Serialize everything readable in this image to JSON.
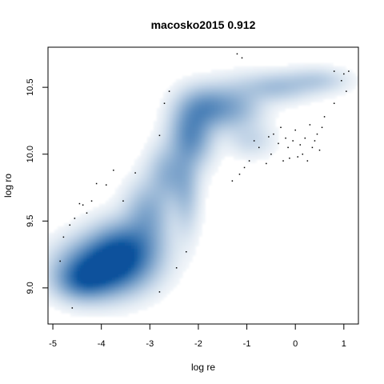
{
  "chart_data": {
    "type": "scatter",
    "style": "smoothed-density-scatter",
    "title": "macosko2015 0.912",
    "xlabel": "log re",
    "ylabel": "log ro",
    "xlim": [
      -5.1,
      1.3
    ],
    "ylim": [
      8.73,
      10.8
    ],
    "xticks": [
      -5,
      -4,
      -3,
      -2,
      -1,
      0,
      1
    ],
    "yticks": [
      9.0,
      9.5,
      10.0,
      10.5
    ],
    "xtick_labels": [
      "-5",
      "-4",
      "-3",
      "-2",
      "-1",
      "0",
      "1"
    ],
    "ytick_labels": [
      "9.0",
      "9.5",
      "10.0",
      "10.5"
    ],
    "grid": false,
    "density_color": "#08519c",
    "density_regions": [
      {
        "x": -3.95,
        "y": 9.15,
        "sx": 0.55,
        "sy": 0.13,
        "w": 1.0
      },
      {
        "x": -3.5,
        "y": 9.3,
        "sx": 0.45,
        "sy": 0.13,
        "w": 0.65
      },
      {
        "x": -4.4,
        "y": 9.05,
        "sx": 0.35,
        "sy": 0.09,
        "w": 0.45
      },
      {
        "x": -3.05,
        "y": 9.55,
        "sx": 0.3,
        "sy": 0.15,
        "w": 0.35
      },
      {
        "x": -2.6,
        "y": 9.85,
        "sx": 0.28,
        "sy": 0.14,
        "w": 0.33
      },
      {
        "x": -2.15,
        "y": 10.15,
        "sx": 0.28,
        "sy": 0.15,
        "w": 0.55
      },
      {
        "x": -1.8,
        "y": 10.35,
        "sx": 0.35,
        "sy": 0.1,
        "w": 0.45
      },
      {
        "x": -2.25,
        "y": 9.7,
        "sx": 0.18,
        "sy": 0.2,
        "w": 0.22
      },
      {
        "x": -1.2,
        "y": 10.35,
        "sx": 0.35,
        "sy": 0.12,
        "w": 0.28
      },
      {
        "x": -0.4,
        "y": 10.5,
        "sx": 0.45,
        "sy": 0.07,
        "w": 0.25
      },
      {
        "x": 0.45,
        "y": 10.55,
        "sx": 0.4,
        "sy": 0.06,
        "w": 0.18
      },
      {
        "x": -0.9,
        "y": 10.1,
        "sx": 0.3,
        "sy": 0.08,
        "w": 0.12
      }
    ],
    "outlier_points": [
      {
        "x": -4.85,
        "y": 9.2
      },
      {
        "x": -4.78,
        "y": 9.38
      },
      {
        "x": -4.65,
        "y": 9.47
      },
      {
        "x": -4.55,
        "y": 9.52
      },
      {
        "x": -4.45,
        "y": 9.63
      },
      {
        "x": -4.38,
        "y": 9.62
      },
      {
        "x": -4.3,
        "y": 9.56
      },
      {
        "x": -4.2,
        "y": 9.65
      },
      {
        "x": -4.1,
        "y": 9.78
      },
      {
        "x": -3.9,
        "y": 9.77
      },
      {
        "x": -3.75,
        "y": 9.88
      },
      {
        "x": -3.55,
        "y": 9.65
      },
      {
        "x": -3.3,
        "y": 9.86
      },
      {
        "x": -2.8,
        "y": 10.14
      },
      {
        "x": -2.7,
        "y": 10.38
      },
      {
        "x": -2.6,
        "y": 10.47
      },
      {
        "x": -2.45,
        "y": 9.15
      },
      {
        "x": -2.25,
        "y": 9.27
      },
      {
        "x": -2.8,
        "y": 8.97
      },
      {
        "x": -4.6,
        "y": 8.85
      },
      {
        "x": -1.2,
        "y": 10.75
      },
      {
        "x": -1.1,
        "y": 10.72
      },
      {
        "x": -1.3,
        "y": 9.8
      },
      {
        "x": -1.15,
        "y": 9.85
      },
      {
        "x": -1.05,
        "y": 9.9
      },
      {
        "x": -0.95,
        "y": 9.95
      },
      {
        "x": -0.85,
        "y": 10.1
      },
      {
        "x": -0.75,
        "y": 10.05
      },
      {
        "x": -0.6,
        "y": 9.93
      },
      {
        "x": -0.5,
        "y": 10.0
      },
      {
        "x": -0.45,
        "y": 10.15
      },
      {
        "x": -0.35,
        "y": 10.08
      },
      {
        "x": -0.3,
        "y": 10.2
      },
      {
        "x": -0.25,
        "y": 9.95
      },
      {
        "x": -0.2,
        "y": 10.12
      },
      {
        "x": -0.15,
        "y": 10.05
      },
      {
        "x": -0.12,
        "y": 9.97
      },
      {
        "x": -0.05,
        "y": 10.1
      },
      {
        "x": 0.0,
        "y": 10.18
      },
      {
        "x": 0.05,
        "y": 9.98
      },
      {
        "x": 0.1,
        "y": 10.07
      },
      {
        "x": 0.15,
        "y": 10.0
      },
      {
        "x": 0.2,
        "y": 10.12
      },
      {
        "x": 0.25,
        "y": 9.95
      },
      {
        "x": 0.3,
        "y": 10.22
      },
      {
        "x": 0.35,
        "y": 10.05
      },
      {
        "x": 0.4,
        "y": 10.1
      },
      {
        "x": 0.45,
        "y": 10.15
      },
      {
        "x": 0.5,
        "y": 10.03
      },
      {
        "x": 0.55,
        "y": 10.2
      },
      {
        "x": 0.6,
        "y": 10.28
      },
      {
        "x": -0.55,
        "y": 10.13
      },
      {
        "x": 0.8,
        "y": 10.62
      },
      {
        "x": 0.95,
        "y": 10.55
      },
      {
        "x": 1.0,
        "y": 10.6
      },
      {
        "x": 1.05,
        "y": 10.47
      },
      {
        "x": 0.8,
        "y": 10.38
      },
      {
        "x": 1.1,
        "y": 10.62
      }
    ]
  }
}
